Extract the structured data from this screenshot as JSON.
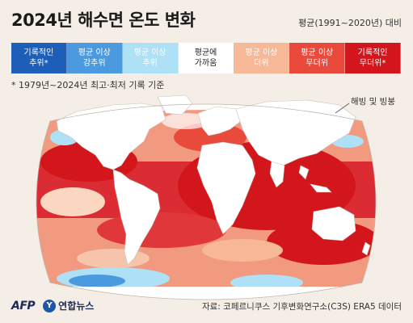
{
  "title": "2024년 해수면 온도 변화",
  "baseline_note": "평균(1991~2020년) 대비",
  "legend": [
    {
      "label": "기록적인\n추위*",
      "color": "#1d5fb8",
      "text_color": "#ffffff"
    },
    {
      "label": "평균 이상\n강추위",
      "color": "#4b9ae0",
      "text_color": "#ffffff"
    },
    {
      "label": "평균 이상\n추위",
      "color": "#aee0f6",
      "text_color": "#ffffff"
    },
    {
      "label": "평균에\n가까움",
      "color": "#ffffff",
      "text_color": "#222222"
    },
    {
      "label": "평균 이상\n더위",
      "color": "#f6b896",
      "text_color": "#ffffff"
    },
    {
      "label": "평균 이상\n무더위",
      "color": "#ea4a3c",
      "text_color": "#ffffff"
    },
    {
      "label": "기록적인\n무더위*",
      "color": "#d3161c",
      "text_color": "#ffffff"
    }
  ],
  "legend_note": "* 1979년~2024년 최고·최저 기록 기준",
  "ice_label": "해빙 및 빙붕",
  "logos": {
    "afp": "AFP",
    "yonhap": "연합뉴스",
    "yonhap_mark": "Y"
  },
  "source": "자료: 코페르니쿠스 기후변화연구소(C3S) ERA5 데이터"
}
